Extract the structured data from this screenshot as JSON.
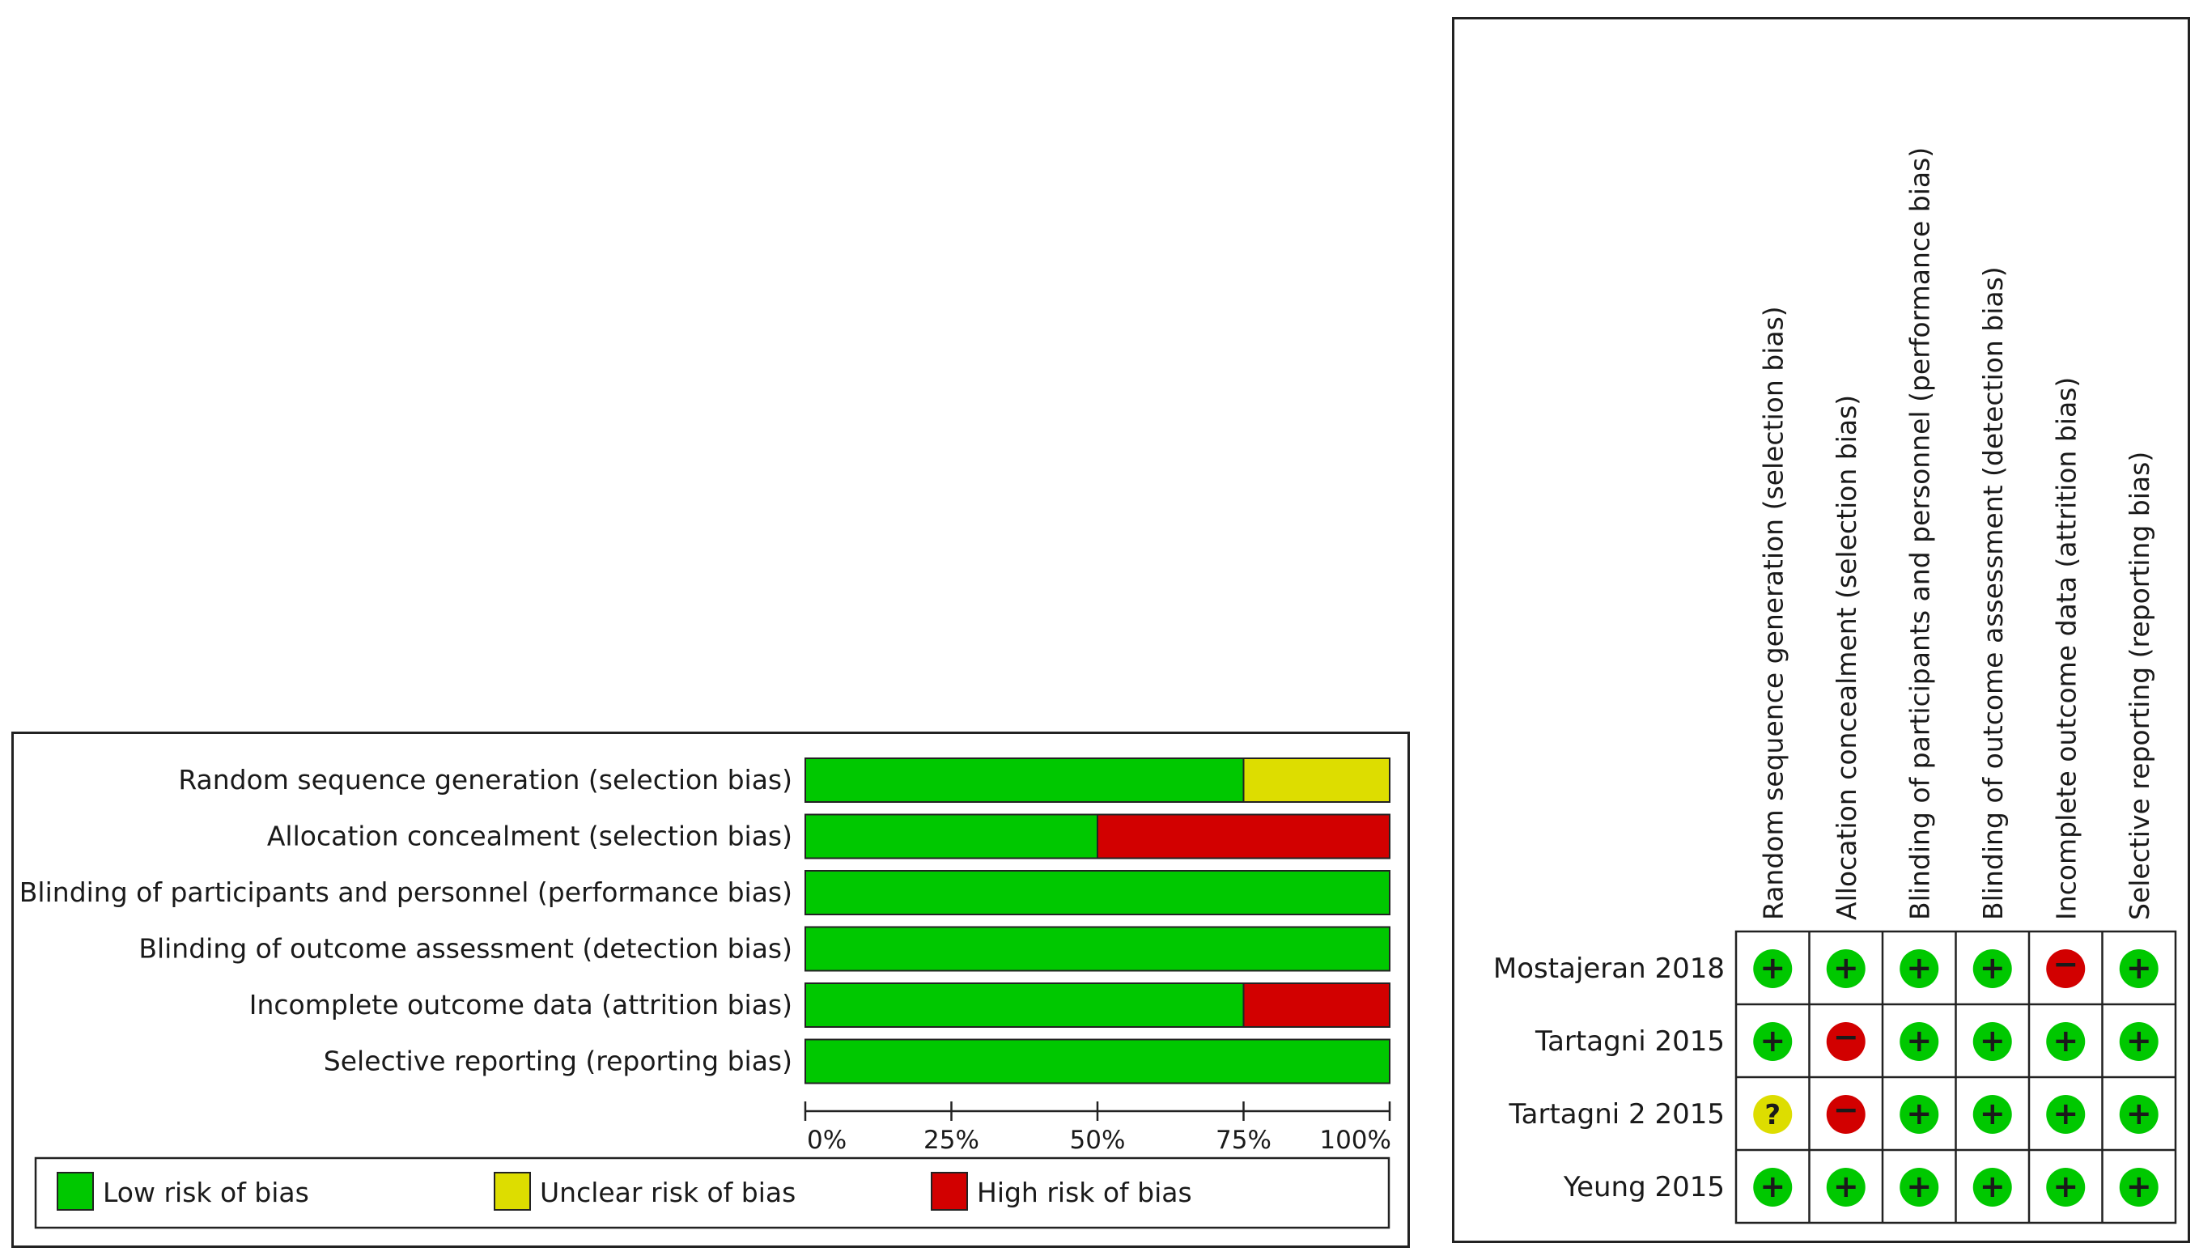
{
  "colors": {
    "low": "#00c800",
    "unclear": "#dddd00",
    "high": "#d20000",
    "border": "#222222"
  },
  "chart_data": [
    {
      "type": "bar",
      "orientation": "horizontal",
      "stacked": true,
      "categories": [
        "Random sequence generation (selection bias)",
        "Allocation concealment (selection bias)",
        "Blinding of participants and personnel (performance bias)",
        "Blinding of outcome assessment (detection bias)",
        "Incomplete outcome data (attrition bias)",
        "Selective reporting (reporting bias)"
      ],
      "series": [
        {
          "name": "Low risk of bias",
          "key": "low",
          "values": [
            75,
            50,
            100,
            100,
            75,
            100
          ]
        },
        {
          "name": "Unclear risk of bias",
          "key": "unclear",
          "values": [
            25,
            0,
            0,
            0,
            0,
            0
          ]
        },
        {
          "name": "High risk of bias",
          "key": "high",
          "values": [
            0,
            50,
            0,
            0,
            25,
            0
          ]
        }
      ],
      "xlim": [
        0,
        100
      ],
      "xticks": [
        "0%",
        "25%",
        "50%",
        "75%",
        "100%"
      ],
      "legend_position": "bottom"
    },
    {
      "type": "table",
      "columns": [
        "Random sequence generation (selection bias)",
        "Allocation concealment (selection bias)",
        "Blinding of participants and personnel (performance bias)",
        "Blinding of outcome assessment (detection bias)",
        "Incomplete outcome data (attrition bias)",
        "Selective reporting (reporting bias)"
      ],
      "rows": [
        {
          "study": "Mostajeran 2018",
          "ratings": [
            "low",
            "low",
            "low",
            "low",
            "high",
            "low"
          ]
        },
        {
          "study": "Tartagni 2015",
          "ratings": [
            "low",
            "high",
            "low",
            "low",
            "low",
            "low"
          ]
        },
        {
          "study": "Tartagni 2 2015",
          "ratings": [
            "unclear",
            "high",
            "low",
            "low",
            "low",
            "low"
          ]
        },
        {
          "study": "Yeung 2015",
          "ratings": [
            "low",
            "low",
            "low",
            "low",
            "low",
            "low"
          ]
        }
      ],
      "symbols": {
        "low": "+",
        "high": "−",
        "unclear": "?"
      }
    }
  ]
}
